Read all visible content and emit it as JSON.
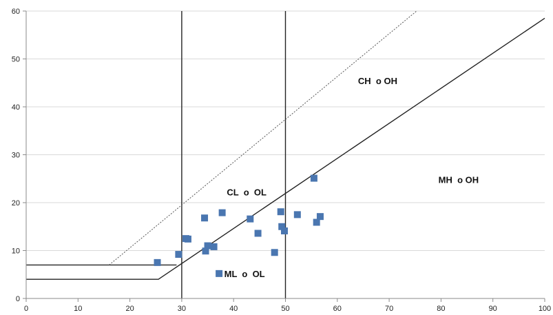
{
  "chart_data": {
    "type": "scatter",
    "title": "",
    "xlabel": "",
    "ylabel": "",
    "xlim": [
      0,
      100
    ],
    "ylim": [
      0,
      60
    ],
    "xticks": [
      0,
      10,
      20,
      30,
      40,
      50,
      60,
      70,
      80,
      90,
      100
    ],
    "yticks": [
      0,
      10,
      20,
      30,
      40,
      50,
      60
    ],
    "grid": true,
    "marker_color": "#4a76b0",
    "marker_shape": "square",
    "points": [
      {
        "x": 25.3,
        "y": 7.5
      },
      {
        "x": 29.4,
        "y": 9.2
      },
      {
        "x": 30.8,
        "y": 12.5
      },
      {
        "x": 31.2,
        "y": 12.4
      },
      {
        "x": 34.4,
        "y": 16.8
      },
      {
        "x": 34.6,
        "y": 9.9
      },
      {
        "x": 35.0,
        "y": 11.0
      },
      {
        "x": 36.2,
        "y": 10.8
      },
      {
        "x": 37.2,
        "y": 5.2
      },
      {
        "x": 37.8,
        "y": 17.9
      },
      {
        "x": 43.2,
        "y": 16.6
      },
      {
        "x": 44.7,
        "y": 13.6
      },
      {
        "x": 47.9,
        "y": 9.6
      },
      {
        "x": 49.1,
        "y": 18.1
      },
      {
        "x": 49.3,
        "y": 15.0
      },
      {
        "x": 49.8,
        "y": 14.1
      },
      {
        "x": 52.3,
        "y": 17.5
      },
      {
        "x": 55.5,
        "y": 25.1
      },
      {
        "x": 56.0,
        "y": 15.9
      },
      {
        "x": 56.7,
        "y": 17.1
      }
    ],
    "reference_lines": [
      {
        "name": "vertical-line-30",
        "style": "solid",
        "points": [
          [
            30,
            0
          ],
          [
            30,
            60
          ]
        ]
      },
      {
        "name": "vertical-line-50",
        "style": "solid",
        "points": [
          [
            50,
            0
          ],
          [
            50,
            60
          ]
        ]
      },
      {
        "name": "a-line",
        "style": "solid",
        "points": [
          [
            0,
            4
          ],
          [
            25.5,
            4
          ],
          [
            100,
            58.5
          ]
        ]
      },
      {
        "name": "lower-horizontal-line",
        "style": "solid",
        "points": [
          [
            0,
            7
          ],
          [
            29,
            7
          ]
        ]
      },
      {
        "name": "u-line",
        "style": "dotted",
        "points": [
          [
            16,
            7
          ],
          [
            75.3,
            60
          ]
        ]
      }
    ],
    "annotations": [
      {
        "text": "CH  o OH",
        "x": 64,
        "y": 45.5
      },
      {
        "text": "CL  o  OL",
        "x": 38.7,
        "y": 22.2
      },
      {
        "text": "MH  o OH",
        "x": 79.5,
        "y": 24.8
      },
      {
        "text": "ML  o  OL",
        "x": 38.2,
        "y": 5.2
      }
    ]
  }
}
